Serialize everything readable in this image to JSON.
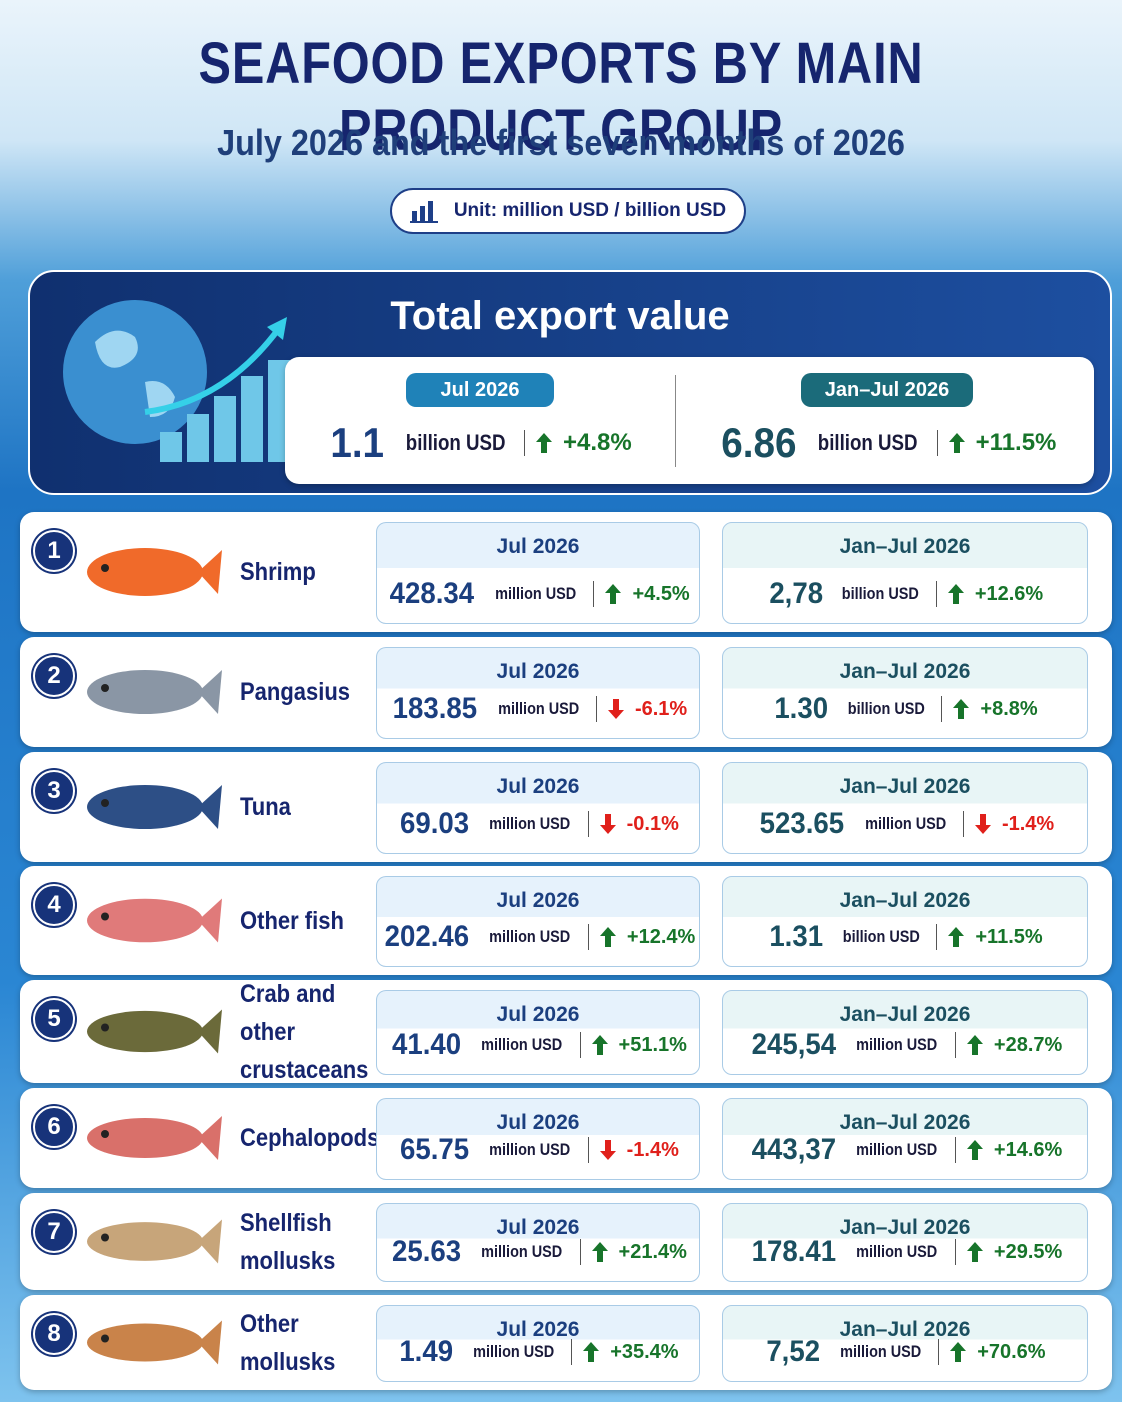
{
  "header": {
    "title": "SEAFOOD EXPORTS BY MAIN PRODUCT GROUP",
    "subtitle": "July 2026 and the first seven months of 2026",
    "unit": "Unit: million USD / billion USD"
  },
  "total": {
    "title": "Total export value",
    "jul": {
      "label": "Jul 2026",
      "value": "1.1",
      "unit": "billion USD",
      "change": "+4.8%"
    },
    "ytd": {
      "label": "Jan–Jul 2026",
      "value": "6.86",
      "unit": "billion USD",
      "change": "+11.5%"
    }
  },
  "items": [
    {
      "rank": 1,
      "name": "Shrimp",
      "jul": {
        "label": "Jul 2026",
        "value": "428.34",
        "unit": "million USD",
        "change": "+4.5%"
      },
      "ytd": {
        "label": "Jan–Jul 2026",
        "value": "2,78",
        "unit": "billion USD",
        "change": "+12.6%"
      }
    },
    {
      "rank": 2,
      "name": "Pangasius",
      "jul": {
        "label": "Jul 2026",
        "value": "183.85",
        "unit": "million USD",
        "change": "-6.1%"
      },
      "ytd": {
        "label": "Jan–Jul 2026",
        "value": "1.30",
        "unit": "billion USD",
        "change": "+8.8%"
      }
    },
    {
      "rank": 3,
      "name": "Tuna",
      "jul": {
        "label": "Jul 2026",
        "value": "69.03",
        "unit": "million USD",
        "change": "-0.1%"
      },
      "ytd": {
        "label": "Jan–Jul 2026",
        "value": "523.65",
        "unit": "million USD",
        "change": "-1.4%"
      }
    },
    {
      "rank": 4,
      "name": "Other fish",
      "jul": {
        "label": "Jul 2026",
        "value": "202.46",
        "unit": "million USD",
        "change": "+12.4%"
      },
      "ytd": {
        "label": "Jan–Jul 2026",
        "value": "1.31",
        "unit": "billion USD",
        "change": "+11.5%"
      }
    },
    {
      "rank": 5,
      "name": "Crab and other crustaceans",
      "jul": {
        "label": "Jul 2026",
        "value": "41.40",
        "unit": "million USD",
        "change": "+51.1%"
      },
      "ytd": {
        "label": "Jan–Jul 2026",
        "value": "245,54",
        "unit": "million USD",
        "change": "+28.7%"
      }
    },
    {
      "rank": 6,
      "name": "Cephalopods",
      "jul": {
        "label": "Jul 2026",
        "value": "65.75",
        "unit": "million USD",
        "change": "-1.4%"
      },
      "ytd": {
        "label": "Jan–Jul 2026",
        "value": "443,37",
        "unit": "million USD",
        "change": "+14.6%"
      }
    },
    {
      "rank": 7,
      "name": "Shellfish mollusks",
      "jul": {
        "label": "Jul 2026",
        "value": "25.63",
        "unit": "million USD",
        "change": "+21.4%"
      },
      "ytd": {
        "label": "Jan–Jul 2026",
        "value": "178.41",
        "unit": "million USD",
        "change": "+29.5%"
      }
    },
    {
      "rank": 8,
      "name": "Other mollusks",
      "jul": {
        "label": "Jul 2026",
        "value": "1.49",
        "unit": "million USD",
        "change": "+35.4%"
      },
      "ytd": {
        "label": "Jan–Jul 2026",
        "value": "7,52",
        "unit": "million USD",
        "change": "+70.6%"
      }
    }
  ]
}
